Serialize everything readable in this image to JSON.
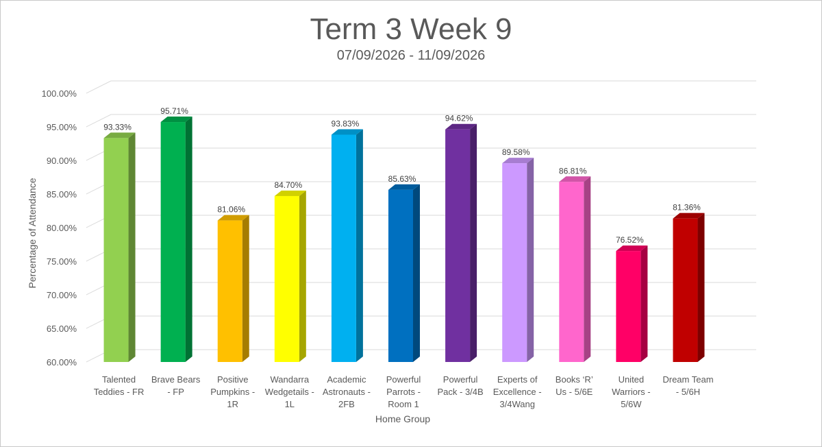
{
  "chart_data": {
    "type": "bar",
    "title": "Term 3 Week 9",
    "subtitle": "07/09/2026 - 11/09/2026",
    "xlabel": "Home Group",
    "ylabel": "Percentage of Attendance",
    "ylim": [
      60,
      100
    ],
    "yticks": [
      "60.00%",
      "65.00%",
      "70.00%",
      "75.00%",
      "80.00%",
      "85.00%",
      "90.00%",
      "95.00%",
      "100.00%"
    ],
    "grid": true,
    "style": "3d-column",
    "categories": [
      [
        "Talented",
        "Teddies - FR"
      ],
      [
        "Brave Bears",
        "- FP"
      ],
      [
        "Positive",
        "Pumpkins -",
        "1R"
      ],
      [
        "Wandarra",
        "Wedgetails -",
        "1L"
      ],
      [
        "Academic",
        "Astronauts -",
        "2FB"
      ],
      [
        "Powerful",
        "Parrots -",
        "Room 1"
      ],
      [
        "Powerful",
        "Pack - 3/4B"
      ],
      [
        "Experts of",
        "Excellence -",
        "3/4Wang"
      ],
      [
        "Books ‘R’",
        "Us - 5/6E"
      ],
      [
        "United",
        "Warriors -",
        "5/6W"
      ],
      [
        "Dream Team",
        "- 5/6H"
      ]
    ],
    "values": [
      93.33,
      95.71,
      81.06,
      84.7,
      93.83,
      85.63,
      94.62,
      89.58,
      86.81,
      76.52,
      81.36
    ],
    "value_labels": [
      "93.33%",
      "95.71%",
      "81.06%",
      "84.70%",
      "93.83%",
      "85.63%",
      "94.62%",
      "89.58%",
      "86.81%",
      "76.52%",
      "81.36%"
    ],
    "colors": [
      "#92d050",
      "#00b050",
      "#ffc000",
      "#ffff00",
      "#00b0f0",
      "#0070c0",
      "#7030a0",
      "#cc99ff",
      "#ff66cc",
      "#ff0066",
      "#c00000"
    ]
  }
}
